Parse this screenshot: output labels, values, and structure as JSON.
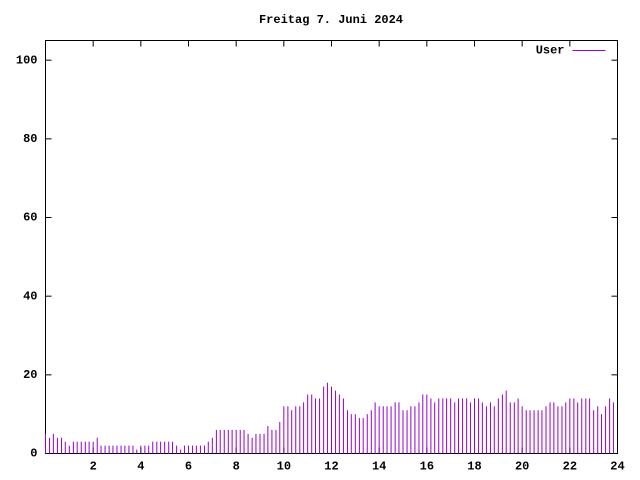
{
  "chart_data": {
    "type": "impulses",
    "title": "Freitag 7. Juni 2024",
    "x": [
      0,
      0.17,
      0.33,
      0.5,
      0.67,
      0.83,
      1,
      1.17,
      1.33,
      1.5,
      1.67,
      1.83,
      2,
      2.17,
      2.33,
      2.5,
      2.67,
      2.83,
      3,
      3.17,
      3.33,
      3.5,
      3.67,
      3.83,
      4,
      4.17,
      4.33,
      4.5,
      4.67,
      4.83,
      5,
      5.17,
      5.33,
      5.5,
      5.67,
      5.83,
      6,
      6.17,
      6.33,
      6.5,
      6.67,
      6.83,
      7,
      7.17,
      7.33,
      7.5,
      7.67,
      7.83,
      8,
      8.17,
      8.33,
      8.5,
      8.67,
      8.83,
      9,
      9.17,
      9.33,
      9.5,
      9.67,
      9.83,
      10,
      10.17,
      10.33,
      10.5,
      10.67,
      10.83,
      11,
      11.17,
      11.33,
      11.5,
      11.67,
      11.83,
      12,
      12.17,
      12.33,
      12.5,
      12.67,
      12.83,
      13,
      13.17,
      13.33,
      13.5,
      13.67,
      13.83,
      14,
      14.17,
      14.33,
      14.5,
      14.67,
      14.83,
      15,
      15.17,
      15.33,
      15.5,
      15.67,
      15.83,
      16,
      16.17,
      16.33,
      16.5,
      16.67,
      16.83,
      17,
      17.17,
      17.33,
      17.5,
      17.67,
      17.83,
      18,
      18.17,
      18.33,
      18.5,
      18.67,
      18.83,
      19,
      19.17,
      19.33,
      19.5,
      19.67,
      19.83,
      20,
      20.17,
      20.33,
      20.5,
      20.67,
      20.83,
      21,
      21.17,
      21.33,
      21.5,
      21.67,
      21.83,
      22,
      22.17,
      22.33,
      22.5,
      22.67,
      22.83,
      23,
      23.17,
      23.33,
      23.5,
      23.67,
      23.83
    ],
    "series": [
      {
        "name": "User",
        "color": "#9400d3",
        "values": [
          5,
          4,
          5,
          4,
          4,
          3,
          2,
          3,
          3,
          3,
          3,
          3,
          3,
          4,
          2,
          2,
          2,
          2,
          2,
          2,
          2,
          2,
          2,
          1,
          2,
          2,
          2,
          3,
          3,
          3,
          3,
          3,
          3,
          2,
          1,
          2,
          2,
          2,
          2,
          2,
          2,
          3,
          4,
          6,
          6,
          6,
          6,
          6,
          6,
          6,
          6,
          5,
          4,
          5,
          5,
          5,
          7,
          6,
          6,
          8,
          12,
          12,
          11,
          12,
          12,
          13,
          15,
          15,
          14,
          14,
          17,
          18,
          17,
          16,
          15,
          14,
          11,
          10,
          10,
          9,
          9,
          10,
          11,
          13,
          12,
          12,
          12,
          12,
          13,
          13,
          11,
          11,
          12,
          12,
          13,
          15,
          15,
          14,
          13,
          14,
          14,
          14,
          14,
          13,
          14,
          14,
          14,
          13,
          14,
          14,
          13,
          12,
          13,
          12,
          14,
          15,
          16,
          13,
          13,
          14,
          12,
          11,
          11,
          11,
          11,
          11,
          12,
          13,
          13,
          12,
          12,
          13,
          14,
          14,
          13,
          14,
          14,
          14,
          11,
          12,
          10,
          12,
          14,
          13
        ]
      }
    ],
    "xlim": [
      0,
      24
    ],
    "xticks": [
      2,
      4,
      6,
      8,
      10,
      12,
      14,
      16,
      18,
      20,
      22,
      24
    ],
    "ylim": [
      0,
      105
    ],
    "yticks": [
      0,
      20,
      40,
      60,
      80,
      100
    ],
    "legend": "top-right"
  }
}
